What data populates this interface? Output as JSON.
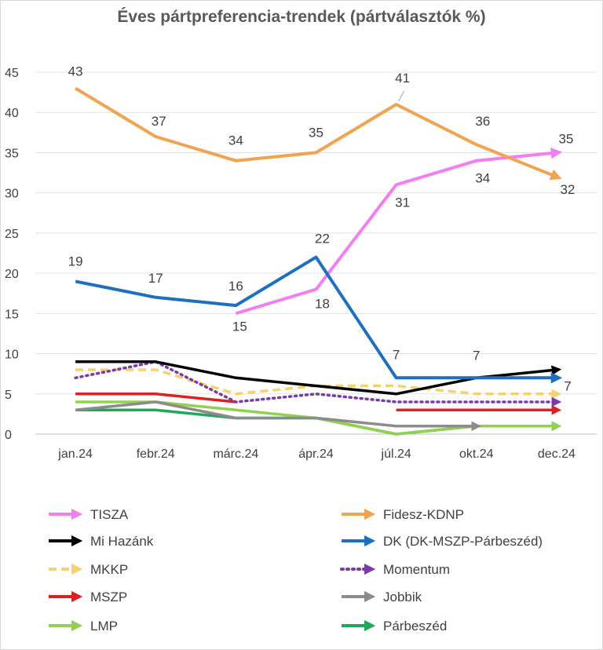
{
  "chart_data": {
    "type": "line",
    "title": "Éves pártpreferencia-trendek (pártválasztók %)",
    "xlabel": "",
    "ylabel": "",
    "categories": [
      "jan.24",
      "febr.24",
      "márc.24",
      "ápr.24",
      "júl.24",
      "okt.24",
      "dec.24"
    ],
    "yticks": [
      "0",
      "5",
      "10",
      "15",
      "20",
      "25",
      "30",
      "35",
      "40",
      "45"
    ],
    "ylim": [
      0,
      45
    ],
    "grid": true,
    "legend_position": "bottom",
    "series": [
      {
        "name": "TISZA",
        "color": "#f27ff2",
        "dash": "solid",
        "values": [
          null,
          null,
          15,
          18,
          31,
          34,
          35
        ],
        "labels": [
          "",
          "",
          "15",
          "18",
          "31",
          "34",
          "35"
        ]
      },
      {
        "name": "Fidesz-KDNP",
        "color": "#f0a350",
        "dash": "solid",
        "values": [
          43,
          37,
          34,
          35,
          41,
          36,
          32
        ],
        "labels": [
          "43",
          "37",
          "34",
          "35",
          "41",
          "36",
          "32"
        ]
      },
      {
        "name": "Mi Hazánk",
        "color": "#000000",
        "dash": "solid",
        "values": [
          9,
          9,
          7,
          6,
          5,
          7,
          8
        ],
        "labels": []
      },
      {
        "name": "DK (DK-MSZP-Párbeszéd)",
        "color": "#1f6fbf",
        "dash": "solid",
        "values": [
          19,
          17,
          16,
          22,
          7,
          7,
          7
        ],
        "labels": [
          "19",
          "17",
          "16",
          "22",
          "7",
          "7",
          "7"
        ]
      },
      {
        "name": "MKKP",
        "color": "#f7d070",
        "dash": "dashed",
        "values": [
          8,
          8,
          5,
          6,
          6,
          5,
          5
        ],
        "labels": []
      },
      {
        "name": "Momentum",
        "color": "#7a3aa8",
        "dash": "dotted",
        "values": [
          7,
          9,
          4,
          5,
          4,
          4,
          4
        ],
        "labels": []
      },
      {
        "name": "MSZP",
        "color": "#e02020",
        "dash": "solid",
        "values": [
          5,
          5,
          4,
          null,
          3,
          3,
          3
        ],
        "labels": []
      },
      {
        "name": "Jobbik",
        "color": "#8c8c8c",
        "dash": "solid",
        "values": [
          3,
          4,
          2,
          2,
          1,
          1,
          null
        ],
        "labels": []
      },
      {
        "name": "LMP",
        "color": "#92d050",
        "dash": "solid",
        "values": [
          4,
          4,
          3,
          2,
          0,
          1,
          1
        ],
        "labels": []
      },
      {
        "name": "Párbeszéd",
        "color": "#1fa85a",
        "dash": "solid",
        "values": [
          3,
          3,
          2,
          2,
          0,
          1,
          1
        ],
        "labels": []
      }
    ]
  }
}
